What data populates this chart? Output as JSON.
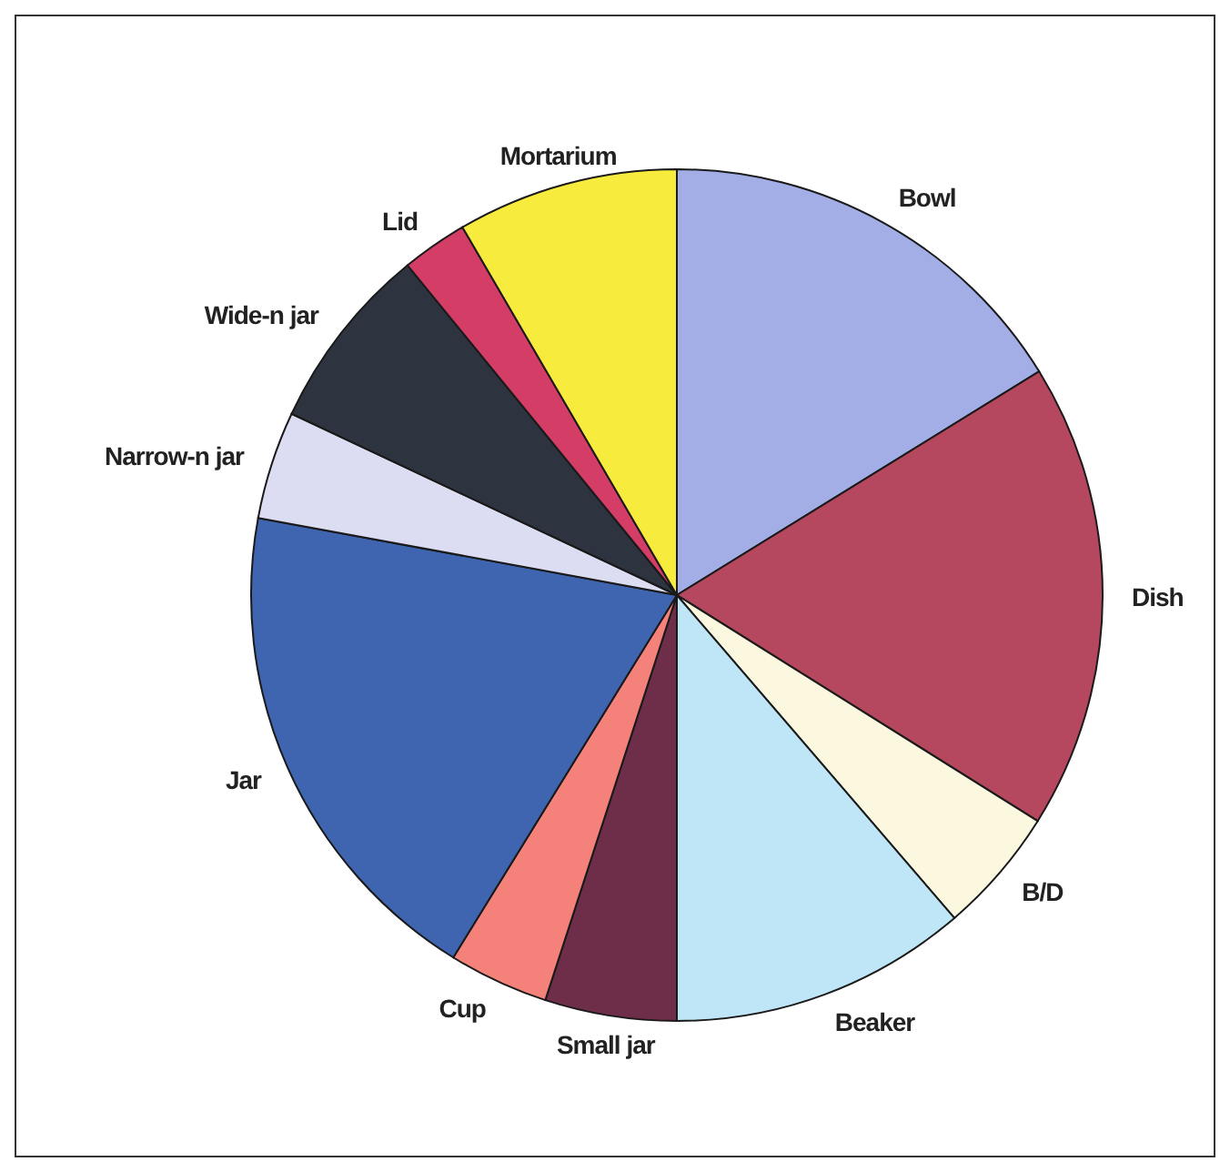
{
  "chart_data": {
    "type": "pie",
    "categories": [
      "Bowl",
      "Dish",
      "B/D",
      "Beaker",
      "Small jar",
      "Cup",
      "Jar",
      "Narrow-n jar",
      "Wide-n jar",
      "Lid",
      "Mortarium"
    ],
    "values": [
      16.2,
      17.7,
      4.8,
      11.3,
      5.0,
      3.8,
      19.1,
      4.1,
      7.1,
      2.5,
      8.4
    ],
    "colors": [
      "#a3aee6",
      "#b5475e",
      "#fbf8df",
      "#bfe6f7",
      "#6e2d48",
      "#f4827a",
      "#3f64b0",
      "#dcdcf2",
      "#2d3440",
      "#d43d66",
      "#f7eb3d"
    ]
  }
}
